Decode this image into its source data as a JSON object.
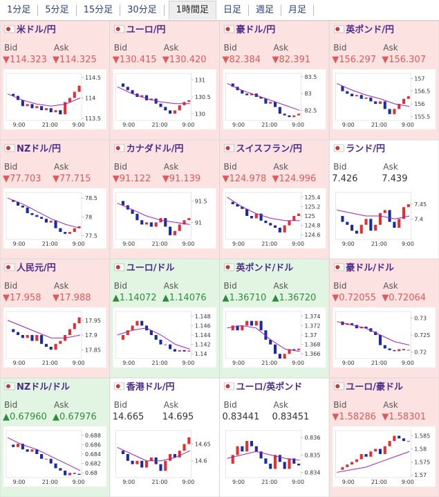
{
  "tabs": [
    "1分足",
    "5分足",
    "15分足",
    "30分足",
    "1時間足",
    "日足",
    "週足",
    "月足"
  ],
  "time_labels": [
    "9:00",
    "21:00",
    "9:00"
  ],
  "bid_label": "Bid",
  "ask_label": "Ask",
  "up_color": "#e03030",
  "down_color": "#1a2aa0",
  "average_color": "#a020c0",
  "panels": [
    {
      "title": "米ドル/円",
      "bid": "▼114.323",
      "ask": "▼114.325",
      "background": "#fde2e2",
      "price_color": "#e05858",
      "chart": {
        "ylim": [
          113.45,
          114.6
        ],
        "yticks": [
          113.5,
          114,
          114.5
        ],
        "closes": [
          114.1,
          114.05,
          113.95,
          113.8,
          113.85,
          113.75,
          113.8,
          113.7,
          113.75,
          113.65,
          113.7,
          113.6,
          113.9,
          114.0,
          114.15,
          114.3
        ],
        "average": [
          114.1,
          113.95,
          113.85,
          113.8,
          113.85,
          114.0
        ]
      }
    },
    {
      "title": "ユーロ/円",
      "bid": "▼130.415",
      "ask": "▼130.420",
      "background": "#fde2e2",
      "price_color": "#e05858",
      "chart": {
        "ylim": [
          129.8,
          131.2
        ],
        "yticks": [
          130,
          130.5,
          131
        ],
        "closes": [
          130.9,
          130.8,
          130.7,
          130.6,
          130.5,
          130.55,
          130.4,
          130.45,
          130.3,
          130.2,
          130.1,
          130.0,
          130.1,
          130.25,
          130.35,
          130.4
        ],
        "average": [
          130.8,
          130.6,
          130.45,
          130.35,
          130.3,
          130.3
        ]
      }
    },
    {
      "title": "豪ドル/円",
      "bid": "▼82.384",
      "ask": "▼82.391",
      "background": "#fde2e2",
      "price_color": "#e05858",
      "chart": {
        "ylim": [
          82.2,
          83.6
        ],
        "yticks": [
          82.5,
          83,
          83.5
        ],
        "closes": [
          83.3,
          83.2,
          83.1,
          83.0,
          82.95,
          83.0,
          82.9,
          82.85,
          82.7,
          82.75,
          82.6,
          82.4,
          82.35,
          82.3,
          82.35,
          82.4
        ],
        "average": [
          83.3,
          83.1,
          82.95,
          82.8,
          82.65,
          82.5
        ]
      }
    },
    {
      "title": "英ポンド/円",
      "bid": "▼156.297",
      "ask": "▼156.307",
      "background": "#fde2e2",
      "price_color": "#e05858",
      "chart": {
        "ylim": [
          155.35,
          157.2
        ],
        "yticks": [
          155.5,
          156,
          156.5,
          157
        ],
        "closes": [
          156.7,
          156.5,
          156.4,
          156.3,
          156.35,
          156.2,
          156.25,
          156.1,
          156.0,
          156.1,
          155.8,
          155.6,
          155.8,
          156.0,
          156.2,
          156.3
        ],
        "average": [
          156.8,
          156.55,
          156.35,
          156.2,
          156.0,
          155.9
        ]
      }
    },
    {
      "title": "NZドル/円",
      "bid": "▼77.703",
      "ask": "▼77.715",
      "background": "#fde2e2",
      "price_color": "#e05858",
      "chart": {
        "ylim": [
          77.4,
          78.65
        ],
        "yticks": [
          77.5,
          78,
          78.5
        ],
        "closes": [
          78.45,
          78.4,
          78.3,
          78.25,
          78.1,
          78.05,
          78.0,
          77.95,
          77.85,
          77.9,
          77.7,
          77.6,
          77.55,
          77.6,
          77.7,
          77.75
        ],
        "average": [
          78.5,
          78.35,
          78.15,
          77.95,
          77.8,
          77.7
        ]
      }
    },
    {
      "title": "カナダドル/円",
      "bid": "▼91.122",
      "ask": "▼91.139",
      "background": "#fde2e2",
      "price_color": "#e05858",
      "chart": {
        "ylim": [
          90.6,
          91.7
        ],
        "yticks": [
          91,
          91.5
        ],
        "closes": [
          91.5,
          91.4,
          91.3,
          91.2,
          91.05,
          90.95,
          91.0,
          90.9,
          91.0,
          91.1,
          90.9,
          90.7,
          90.8,
          90.95,
          91.05,
          91.1
        ],
        "average": [
          91.45,
          91.3,
          91.15,
          91.05,
          91.0,
          90.95
        ]
      }
    },
    {
      "title": "スイスフラン/円",
      "bid": "▼124.978",
      "ask": "▼124.996",
      "background": "#fde2e2",
      "price_color": "#e05858",
      "chart": {
        "ylim": [
          124.5,
          125.5
        ],
        "yticks": [
          124.6,
          124.8,
          125,
          125.2,
          125.4
        ],
        "closes": [
          125.3,
          125.25,
          125.2,
          125.15,
          125.0,
          124.95,
          125.05,
          124.9,
          124.85,
          124.8,
          124.75,
          124.65,
          124.8,
          124.9,
          125.0,
          125.05
        ],
        "average": [
          125.4,
          125.2,
          125.05,
          124.95,
          124.9,
          124.9
        ]
      }
    },
    {
      "title": "ランド/円",
      "bid": "7.426",
      "ask": "7.439",
      "background": "#ffffff",
      "price_color": "#333333",
      "chart": {
        "ylim": [
          7.33,
          7.49
        ],
        "yticks": [
          7.4,
          7.45
        ],
        "closes": [
          7.41,
          7.39,
          7.38,
          7.36,
          7.35,
          7.38,
          7.4,
          7.36,
          7.38,
          7.42,
          7.43,
          7.39,
          7.37,
          7.4,
          7.44,
          7.45
        ],
        "average": [
          7.43,
          7.42,
          7.41,
          7.41,
          7.4,
          7.41
        ]
      }
    },
    {
      "title": "人民元/円",
      "bid": "▼17.958",
      "ask": "▼17.988",
      "background": "#fde2e2",
      "price_color": "#e05858",
      "chart": {
        "ylim": [
          17.82,
          17.98
        ],
        "yticks": [
          17.85,
          17.9,
          17.95
        ],
        "closes": [
          17.92,
          17.91,
          17.9,
          17.89,
          17.9,
          17.88,
          17.9,
          17.87,
          17.86,
          17.85,
          17.87,
          17.88,
          17.9,
          17.92,
          17.94,
          17.96
        ],
        "average": [
          17.95,
          17.93,
          17.91,
          17.89,
          17.89,
          17.9
        ]
      }
    },
    {
      "title": "ユーロ/ドル",
      "bid": "▲1.14072",
      "ask": "▲1.14076",
      "background": "#e2f5e2",
      "price_color": "#2e8b3e",
      "chart": {
        "ylim": [
          1.139,
          1.149
        ],
        "yticks": [
          1.14,
          1.142,
          1.144,
          1.146,
          1.148
        ],
        "closes": [
          1.143,
          1.144,
          1.145,
          1.146,
          1.147,
          1.146,
          1.145,
          1.144,
          1.143,
          1.142,
          1.142,
          1.141,
          1.1405,
          1.1408,
          1.1405,
          1.1407
        ],
        "average": [
          1.144,
          1.145,
          1.1455,
          1.144,
          1.142,
          1.141
        ]
      }
    },
    {
      "title": "英ポンド/ドル",
      "bid": "▲1.36710",
      "ask": "▲1.36720",
      "background": "#e2f5e2",
      "price_color": "#2e8b3e",
      "chart": {
        "ylim": [
          1.365,
          1.375
        ],
        "yticks": [
          1.366,
          1.368,
          1.37,
          1.372,
          1.374
        ],
        "closes": [
          1.371,
          1.372,
          1.371,
          1.372,
          1.373,
          1.372,
          1.373,
          1.371,
          1.369,
          1.368,
          1.366,
          1.365,
          1.366,
          1.367,
          1.3668,
          1.3671
        ],
        "average": [
          1.3715,
          1.372,
          1.3715,
          1.369,
          1.367,
          1.3665
        ]
      }
    },
    {
      "title": "豪ドル/ドル",
      "bid": "▼0.72055",
      "ask": "▼0.72064",
      "background": "#fde2e2",
      "price_color": "#e05858",
      "chart": {
        "ylim": [
          0.718,
          0.732
        ],
        "yticks": [
          0.72,
          0.725,
          0.73
        ],
        "closes": [
          0.729,
          0.728,
          0.7285,
          0.728,
          0.727,
          0.7275,
          0.727,
          0.726,
          0.725,
          0.722,
          0.721,
          0.7205,
          0.7202,
          0.7208,
          0.7205,
          0.7206
        ],
        "average": [
          0.729,
          0.728,
          0.727,
          0.725,
          0.723,
          0.722
        ]
      }
    },
    {
      "title": "NZドル/ドル",
      "bid": "▲0.67960",
      "ask": "▲0.67976",
      "background": "#e2f5e2",
      "price_color": "#2e8b3e",
      "chart": {
        "ylim": [
          0.679,
          0.689
        ],
        "yticks": [
          0.68,
          0.682,
          0.684,
          0.686,
          0.688
        ],
        "closes": [
          0.686,
          0.6855,
          0.6862,
          0.685,
          0.6845,
          0.685,
          0.684,
          0.683,
          0.683,
          0.682,
          0.681,
          0.6805,
          0.6795,
          0.68,
          0.6798,
          0.6796
        ],
        "average": [
          0.6875,
          0.686,
          0.685,
          0.6835,
          0.682,
          0.6805
        ]
      }
    },
    {
      "title": "香港ドル/円",
      "bid": "14.665",
      "ask": "14.695",
      "background": "#ffffff",
      "price_color": "#333333",
      "chart": {
        "ylim": [
          14.55,
          14.69
        ],
        "yticks": [
          14.6,
          14.65
        ],
        "closes": [
          14.63,
          14.62,
          14.6,
          14.59,
          14.6,
          14.58,
          14.6,
          14.61,
          14.59,
          14.57,
          14.6,
          14.62,
          14.61,
          14.63,
          14.65,
          14.67
        ],
        "average": [
          14.64,
          14.62,
          14.6,
          14.6,
          14.61,
          14.63
        ]
      }
    },
    {
      "title": "ユーロ/英ポンド",
      "bid": "0.83441",
      "ask": "0.83451",
      "background": "#ffffff",
      "price_color": "#333333",
      "chart": {
        "ylim": [
          0.8337,
          0.8364
        ],
        "yticks": [
          0.834,
          0.835,
          0.836
        ],
        "closes": [
          0.8345,
          0.835,
          0.8355,
          0.8352,
          0.8358,
          0.8355,
          0.8352,
          0.8348,
          0.8345,
          0.8342,
          0.835,
          0.8346,
          0.8342,
          0.8348,
          0.8345,
          0.8344
        ],
        "average": [
          0.8348,
          0.835,
          0.8352,
          0.835,
          0.8348,
          0.8347
        ]
      }
    },
    {
      "title": "ユーロ/豪ドル",
      "bid": "▼1.58286",
      "ask": "▼1.58301",
      "background": "#fde2e2",
      "price_color": "#e05858",
      "chart": {
        "ylim": [
          1.569,
          1.587
        ],
        "yticks": [
          1.57,
          1.575,
          1.58,
          1.585
        ],
        "closes": [
          1.572,
          1.573,
          1.574,
          1.575,
          1.576,
          1.578,
          1.577,
          1.579,
          1.58,
          1.578,
          1.581,
          1.583,
          1.585,
          1.584,
          1.583,
          1.583
        ],
        "average": [
          1.571,
          1.572,
          1.573,
          1.575,
          1.577,
          1.579
        ]
      }
    }
  ]
}
